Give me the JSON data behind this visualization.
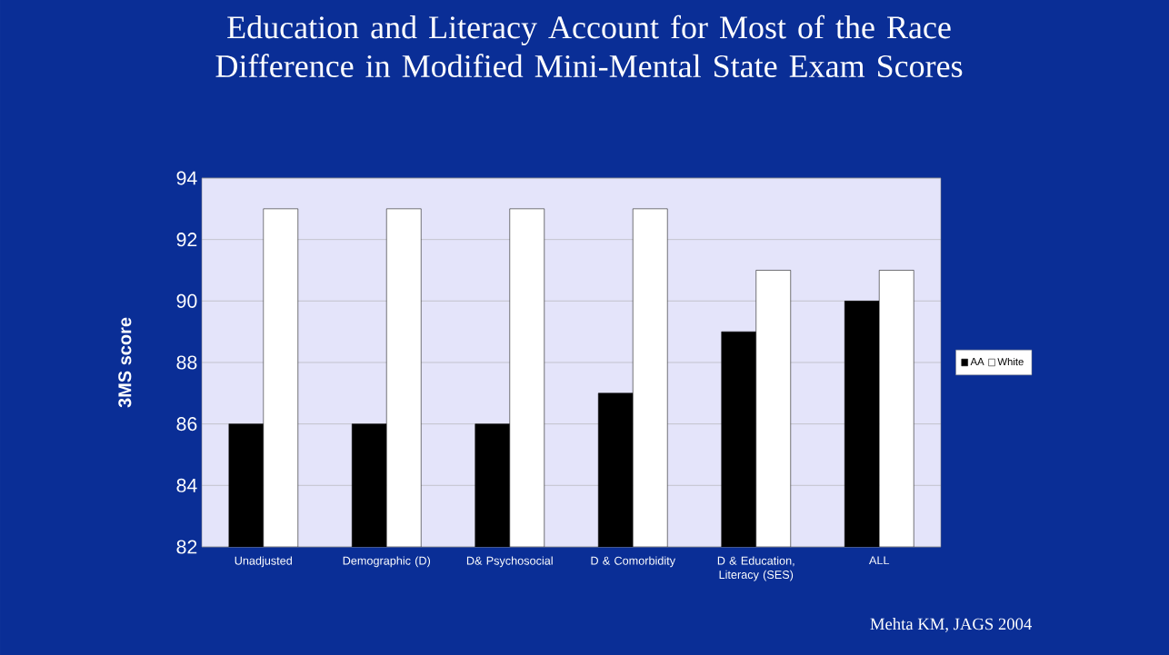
{
  "chart_data": {
    "type": "bar",
    "title": "Education and Literacy Account for Most of the Race Difference in Modified Mini-Mental State Exam Scores",
    "ylabel": "3MS score",
    "categories": [
      "Unadjusted",
      "Demographic (D)",
      "D& Psychosocial",
      "D & Comorbidity",
      "D & Education, Literacy (SES)",
      "ALL"
    ],
    "series": [
      {
        "name": "AA",
        "color": "#000000",
        "values": [
          86,
          86,
          86,
          87,
          89,
          90
        ]
      },
      {
        "name": "White",
        "color": "#ffffff",
        "values": [
          93,
          93,
          93,
          93,
          91,
          91
        ]
      }
    ],
    "ylim": [
      82,
      94
    ],
    "yticks": [
      82,
      84,
      86,
      88,
      90,
      92,
      94
    ],
    "grid": "y",
    "legend": "right",
    "annotations": [
      "Mehta KM, JAGS 2004"
    ]
  }
}
